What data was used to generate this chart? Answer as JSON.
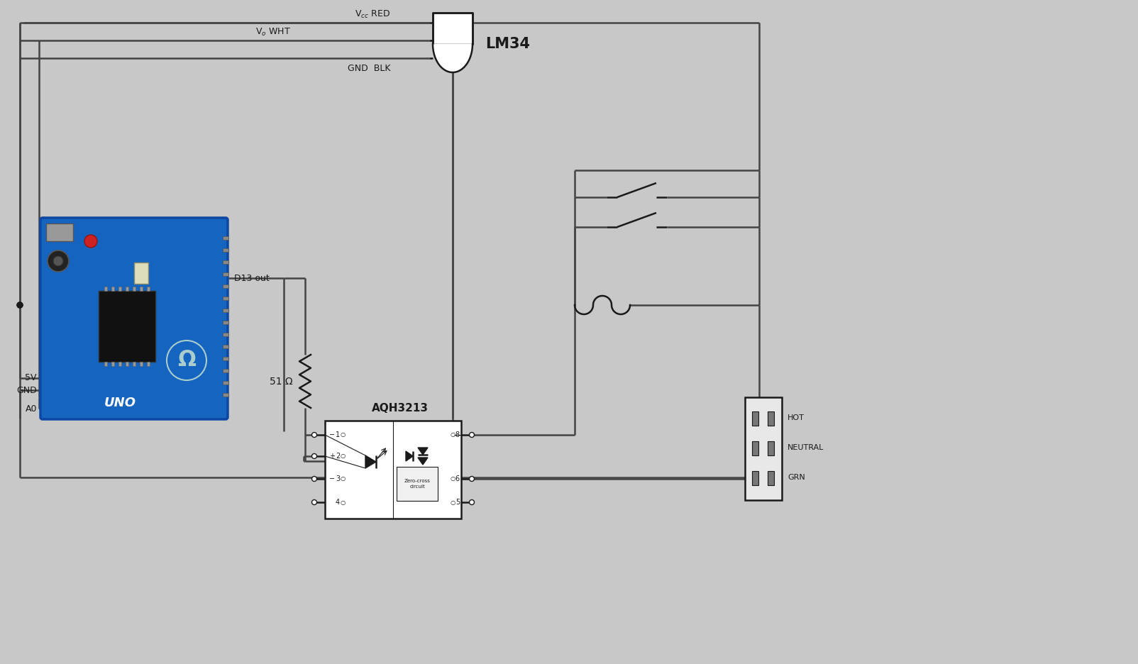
{
  "bg_color": "#c8c8c8",
  "line_color": "#1a1a1a",
  "line_width": 1.8,
  "labels": {
    "vcc_red": "V$_{cc}$ RED",
    "vo_wht": "V$_o$ WHT",
    "gnd_blk": "GND  BLK",
    "lm34": "LM34",
    "d13_out": "D13 out",
    "5v": "5V",
    "gnd": "GND",
    "a0": "A0",
    "resistor_label": "51 Ω",
    "aqh": "AQH3213",
    "hot": "HOT",
    "neutral": "NEUTRAL",
    "grn": "GRN",
    "zero_cross": "Zero-cross\ncircuit",
    "pin1": "1",
    "pin2": "2",
    "pin3": "3",
    "pin4": "4",
    "pin5": "5",
    "pin6": "6",
    "pin8": "8"
  },
  "wire_color": "#555555",
  "component_fill": "#ffffff",
  "text_color": "#1a1a1a",
  "arduino_blue": "#1565C0",
  "arduino_dark": "#0d47a1"
}
